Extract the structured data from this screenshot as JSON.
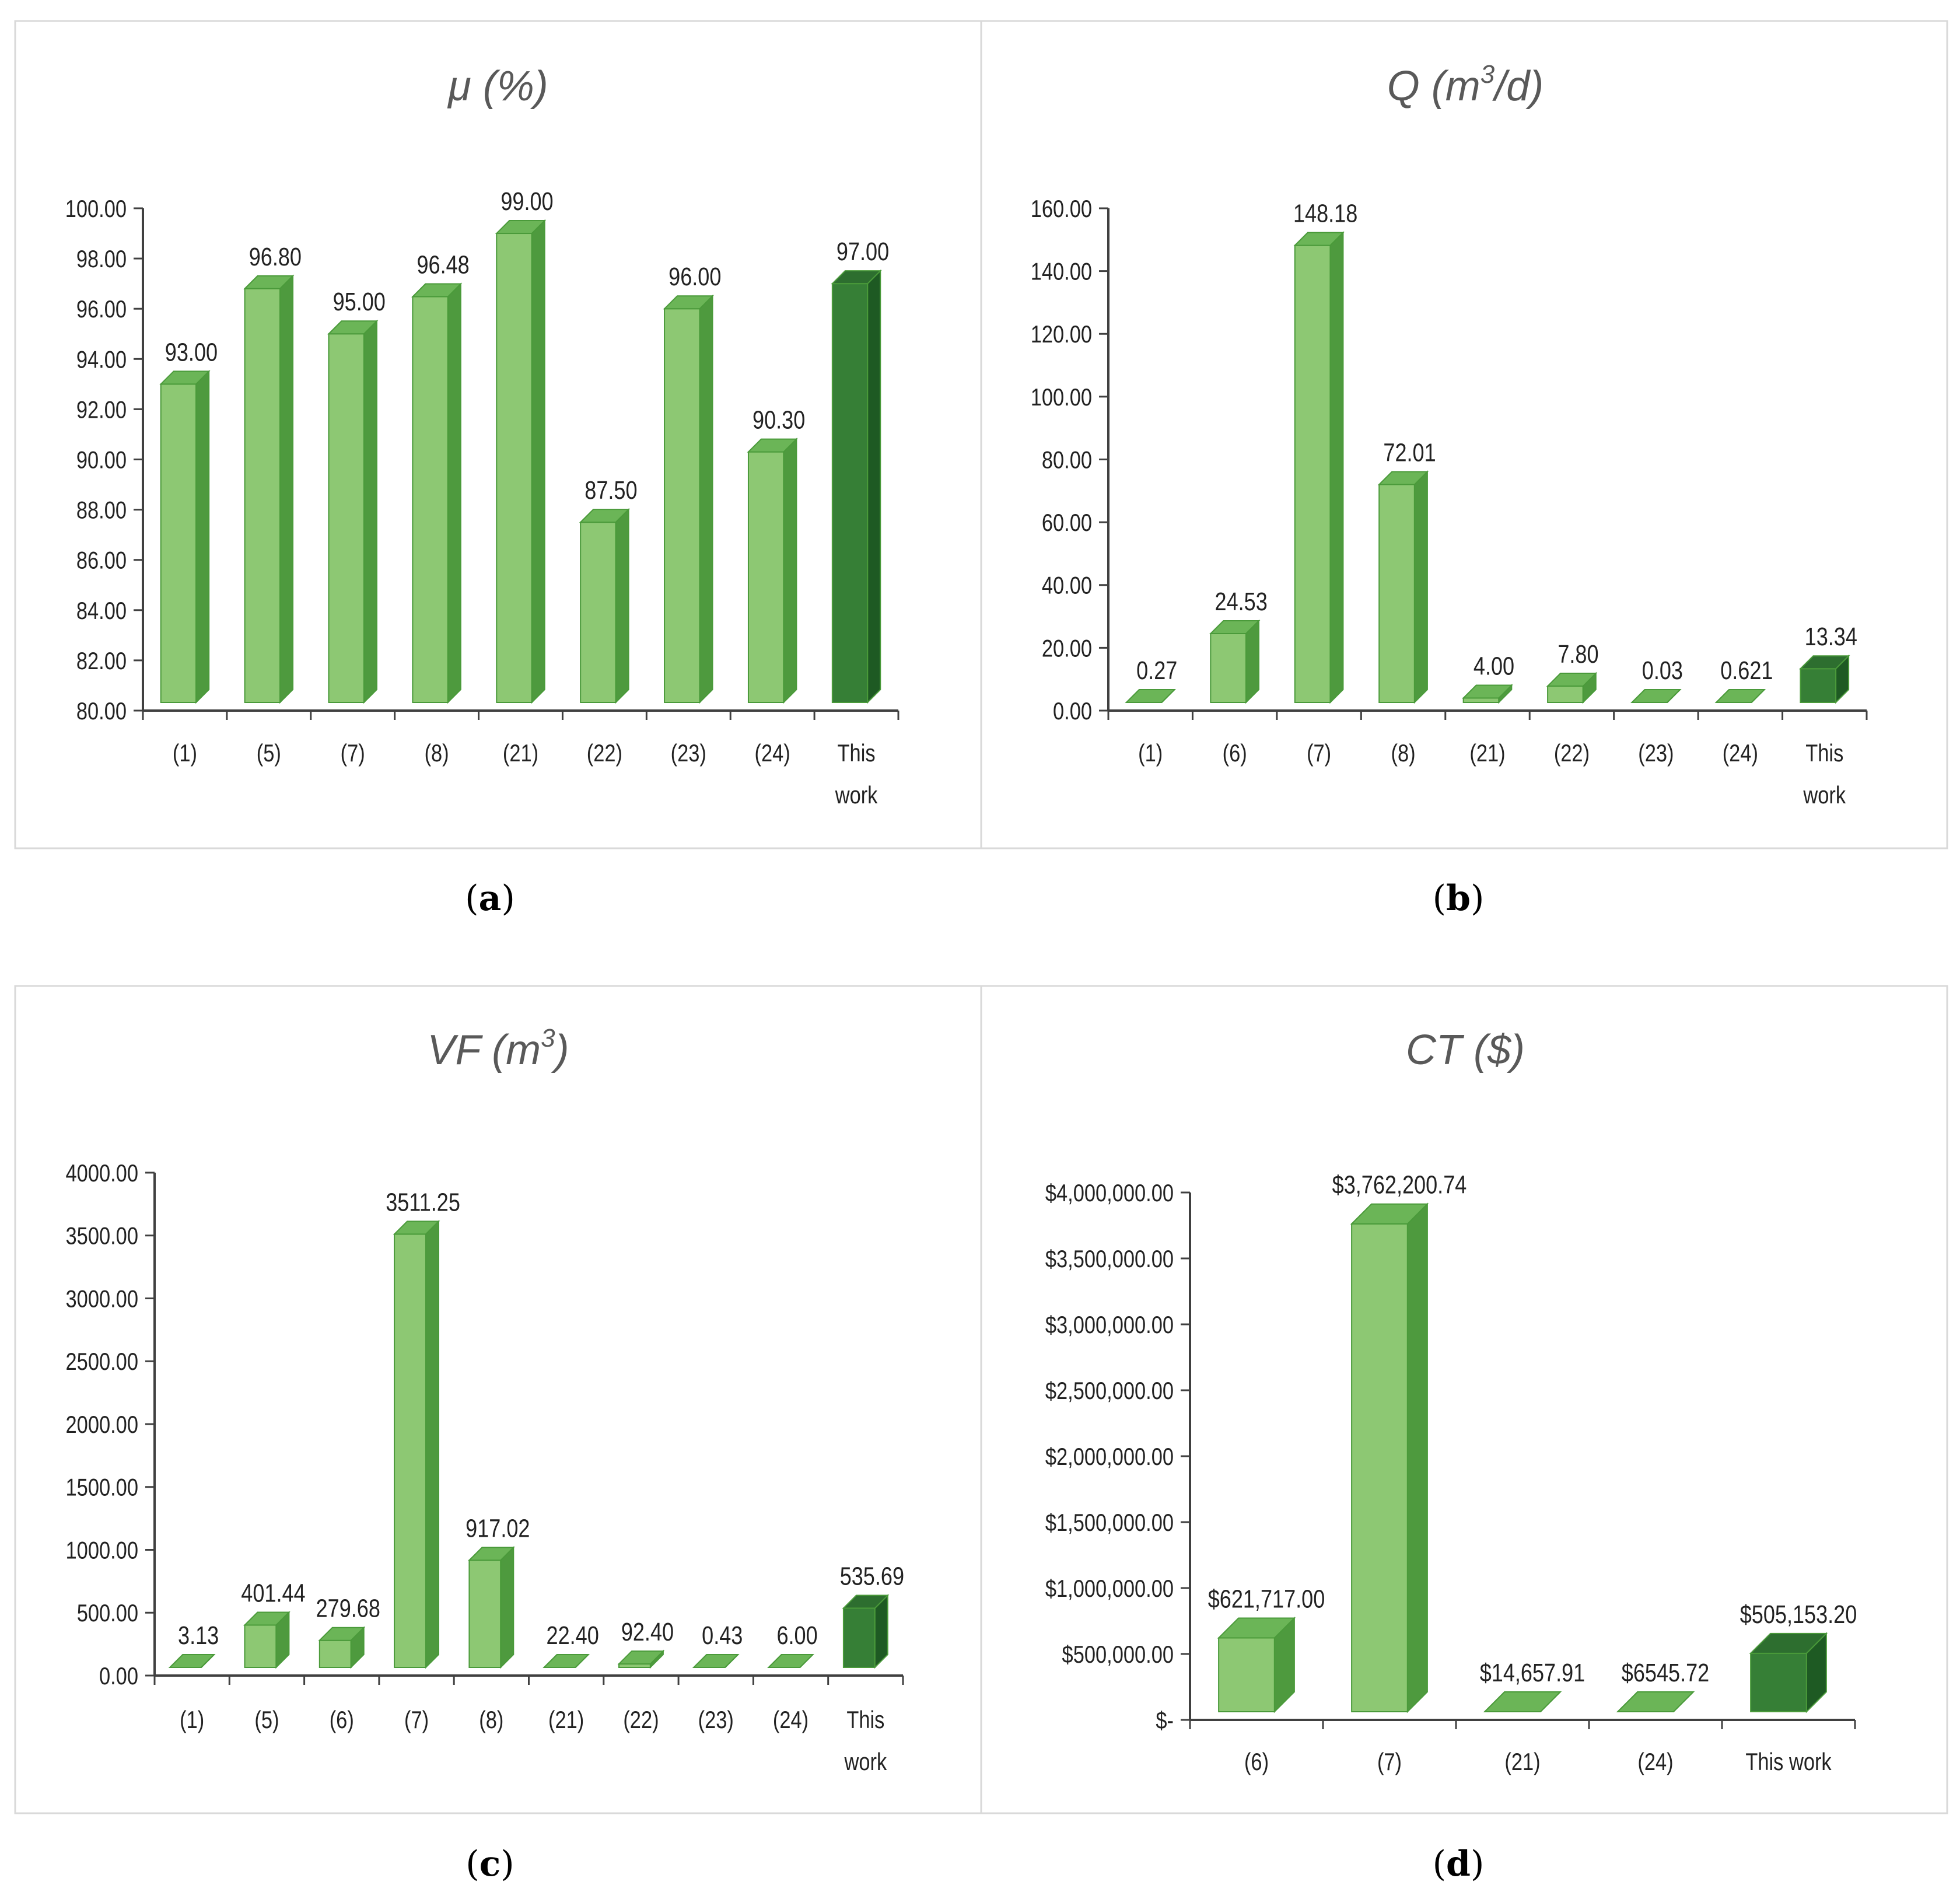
{
  "colors": {
    "bar_front": "#8DC873",
    "bar_side": "#4E9A3E",
    "bar_top": "#6BB557",
    "bar_edge": "#4A9A3A",
    "highlight_front": "#367F36",
    "highlight_side": "#1E5A23",
    "highlight_top": "#2D6E2F",
    "axis": "#404040",
    "text": "#222222",
    "panel_border": "#D9D9D9"
  },
  "chart_data": [
    {
      "id": "a",
      "type": "bar",
      "title_main": "μ (%)",
      "caption": "a",
      "categories": [
        "(1)",
        "(5)",
        "(7)",
        "(8)",
        "(21)",
        "(22)",
        "(23)",
        "(24)",
        "This work"
      ],
      "values": [
        93.0,
        96.8,
        95.0,
        96.48,
        99.0,
        87.5,
        96.0,
        90.3,
        97.0
      ],
      "value_labels": [
        "93.00",
        "96.80",
        "95.00",
        "96.48",
        "99.00",
        "87.50",
        "96.00",
        "90.30",
        "97.00"
      ],
      "highlight_index": 8,
      "ylim": [
        80,
        100
      ],
      "yticks": [
        "80.00",
        "82.00",
        "84.00",
        "86.00",
        "88.00",
        "90.00",
        "92.00",
        "94.00",
        "96.00",
        "98.00",
        "100.00"
      ],
      "xlabel": "",
      "ylabel": "",
      "grid": false,
      "legend": "none"
    },
    {
      "id": "b",
      "type": "bar",
      "title_main": "Q (m",
      "title_sup": "3",
      "title_tail": "/d)",
      "caption": "b",
      "categories": [
        "(1)",
        "(6)",
        "(7)",
        "(8)",
        "(21)",
        "(22)",
        "(23)",
        "(24)",
        "This work"
      ],
      "values": [
        0.27,
        24.53,
        148.18,
        72.01,
        4.0,
        7.8,
        0.03,
        0.621,
        13.34
      ],
      "value_labels": [
        "0.27",
        "24.53",
        "148.18",
        "72.01",
        "4.00",
        "7.80",
        "0.03",
        "0.621",
        "13.34"
      ],
      "highlight_index": 8,
      "ylim": [
        0,
        160
      ],
      "yticks": [
        "0.00",
        "20.00",
        "40.00",
        "60.00",
        "80.00",
        "100.00",
        "120.00",
        "140.00",
        "160.00"
      ],
      "xlabel": "",
      "ylabel": "",
      "grid": false,
      "legend": "none"
    },
    {
      "id": "c",
      "type": "bar",
      "title_main": "VF (m",
      "title_sup": "3",
      "title_tail": ")",
      "caption": "c",
      "categories": [
        "(1)",
        "(5)",
        "(6)",
        "(7)",
        "(8)",
        "(21)",
        "(22)",
        "(23)",
        "(24)",
        "This work"
      ],
      "values": [
        3.13,
        401.44,
        279.68,
        3511.25,
        917.02,
        22.4,
        92.4,
        0.43,
        6.0,
        535.69
      ],
      "value_labels": [
        "3.13",
        "401.44",
        "279.68",
        "3511.25",
        "917.02",
        "22.40",
        "92.40",
        "0.43",
        "6.00",
        "535.69"
      ],
      "highlight_index": 9,
      "ylim": [
        0,
        4000
      ],
      "yticks": [
        "0.00",
        "500.00",
        "1000.00",
        "1500.00",
        "2000.00",
        "2500.00",
        "3000.00",
        "3500.00",
        "4000.00"
      ],
      "xlabel": "",
      "ylabel": "",
      "grid": false,
      "legend": "none"
    },
    {
      "id": "d",
      "type": "bar",
      "title_main": "CT ($)",
      "caption": "d",
      "categories": [
        "(6)",
        "(7)",
        "(21)",
        "(24)",
        "This work"
      ],
      "values": [
        621717.0,
        3762200.74,
        14657.91,
        6545.72,
        505153.2
      ],
      "value_labels": [
        "$621,717.00",
        "$3,762,200.74",
        "$14,657.91",
        "$6545.72",
        "$505,153.20"
      ],
      "highlight_index": 4,
      "ylim": [
        0,
        4000000
      ],
      "yticks": [
        "$-",
        "$500,000.00",
        "$1,000,000.00",
        "$1,500,000.00",
        "$2,000,000.00",
        "$2,500,000.00",
        "$3,000,000.00",
        "$3,500,000.00",
        "$4,000,000.00"
      ],
      "xlabel": "",
      "ylabel": "",
      "grid": false,
      "legend": "none"
    }
  ]
}
